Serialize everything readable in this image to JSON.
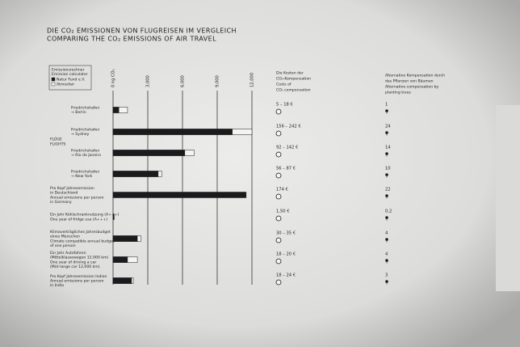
{
  "chart_data": {
    "type": "bar",
    "title": [
      "DIE CO₂ EMISSIONEN VON FLUGREISEN IM VERGLEICH",
      "COMPARING THE CO₂ EMISSIONS OF AIR TRAVEL"
    ],
    "legend_title": [
      "Emissionsrechner",
      "Emission calculator"
    ],
    "group_label": [
      "FLÜGE",
      "FLIGHTS"
    ],
    "categories": [
      [
        "Friedrichshafen",
        "→ Berlin"
      ],
      [
        "Friedrichshafen",
        "→ Sydney"
      ],
      [
        "Friedrichshafen",
        "→ Rio de Janeiro"
      ],
      [
        "Friedrichshafen",
        "→ New York"
      ],
      [
        "Pro Kopf Jahresemission",
        "in Deutschland",
        "Annual emissions per person",
        "in Germany"
      ],
      [
        "Ein Jahr Kühlschranknutzung (A+++)",
        "One year of fridge use (A+++)"
      ],
      [
        "Klimaverträgliches Jahresbudget",
        "eines Menschen",
        "Climate compatible annual budget",
        "of one person"
      ],
      [
        "Ein Jahr Autofahren",
        "(Mittelklassewagen 12.000 km)",
        "One year of driving a car",
        "(Mid-range car 12,000 km)"
      ],
      [
        "Pro Kopf Jahresemission Indien",
        "Annual emissions per person",
        "in India"
      ]
    ],
    "series": [
      {
        "name": "Atmosfair",
        "color": "#f4f4f2",
        "values": [
          1250,
          12000,
          7000,
          4200,
          null,
          null,
          2400,
          2100,
          1750
        ]
      },
      {
        "name": "Natur Fund e.V.",
        "color": "#1b1b1d",
        "values": [
          500,
          10300,
          6200,
          3900,
          11500,
          100,
          2100,
          1250,
          1600
        ]
      }
    ],
    "xlim": [
      0,
      12000
    ],
    "xticks": [
      {
        "value": 0,
        "label": "0 kg CO₂"
      },
      {
        "value": 3000,
        "label": "3,000"
      },
      {
        "value": 6000,
        "label": "6,000"
      },
      {
        "value": 9000,
        "label": "9,000"
      },
      {
        "value": 12000,
        "label": "12,000"
      }
    ],
    "costs_header": [
      "Die Kosten der",
      "CO₂-Kompensation",
      "Costs of",
      "CO₂ compensation"
    ],
    "costs": [
      "5 – 18 €",
      "156 – 242 €",
      "92 – 142 €",
      "56 – 87 €",
      "174 €",
      "1,50 €",
      "30 – 35 €",
      "18 – 20 €",
      "18 – 24 €"
    ],
    "trees_header": [
      "Alternative Kompensation durch",
      "das Pflanzen von Bäumen",
      "Alternative compensation by",
      "planting trees"
    ],
    "trees": {
      "values": [
        1,
        24,
        14,
        10,
        22,
        0.2,
        4,
        4,
        3
      ],
      "value_labels": [
        "1",
        "24",
        "14",
        "10",
        "22",
        "0,2",
        "4",
        "4",
        "3"
      ]
    }
  }
}
